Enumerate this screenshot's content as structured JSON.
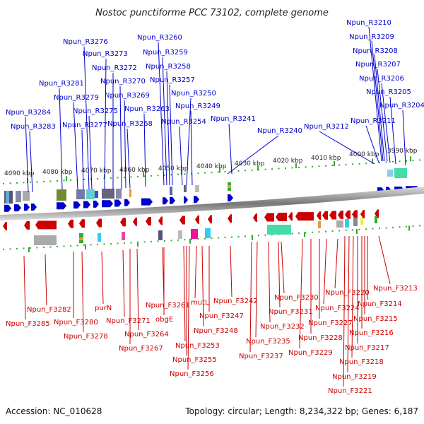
{
  "title": "Nostoc punctiforme PCC 73102, complete genome",
  "accession": "Accession: NC_010628",
  "topology": "Topology: circular; Length: 8,234,322 bp; Genes: 6,187",
  "colors": {
    "plus": "#0000cc",
    "minus": "#cc0000",
    "backbone": "#888888",
    "ticks": "#33aa33"
  },
  "ruler": {
    "upper": [
      "4090 kbp",
      "4080 kbp",
      "4070 kbp",
      "4060 kbp",
      "4050 kbp",
      "4040 kbp",
      "4030 kbp",
      "4020 kbp",
      "4010 kbp",
      "4000 kbp",
      "3990 kbp"
    ]
  },
  "plus_labels": [
    "Npun_R3210",
    "Npun_R3209",
    "Npun_R3208",
    "Npun_R3207",
    "Npun_R3206",
    "Npun_R3205",
    "Npun_R3204",
    "Npun_R3211",
    "Npun_R3212",
    "Npun_R3240",
    "Npun_R3241",
    "Npun_R3260",
    "Npun_R3276",
    "Npun_R3259",
    "Npun_R3273",
    "Npun_R3258",
    "Npun_R3272",
    "Npun_R3257",
    "Npun_R3270",
    "Npun_R3281",
    "Npun_R3250",
    "Npun_R3269",
    "Npun_R3279",
    "Npun_R3275",
    "Npun_R3263",
    "Npun_R3249",
    "Npun_R3284",
    "Npun_R3277",
    "Npun_R3268",
    "Npun_R3254",
    "Npun_R3283"
  ],
  "minus_labels": [
    "Npun_F3282",
    "Npun_F3285",
    "purN",
    "Npun_F3280",
    "Npun_F3278",
    "Npun_F3271",
    "Npun_F3264",
    "Npun_F3267",
    "Npun_F3261",
    "obgE",
    "mutL",
    "Npun_F3242",
    "Npun_F3247",
    "Npun_F3248",
    "Npun_F3253",
    "Npun_F3255",
    "Npun_F3256",
    "Npun_F3230",
    "Npun_F3231",
    "Npun_F3232",
    "Npun_F3235",
    "Npun_F3237",
    "Npun_F3220",
    "Npun_F3224",
    "Npun_F3227",
    "Npun_F3228",
    "Npun_F3229",
    "Npun_F3214",
    "Npun_F3215",
    "Npun_F3216",
    "Npun_F3217",
    "Npun_F3218",
    "Npun_F3219",
    "Npun_F3221",
    "Npun_F3213"
  ]
}
